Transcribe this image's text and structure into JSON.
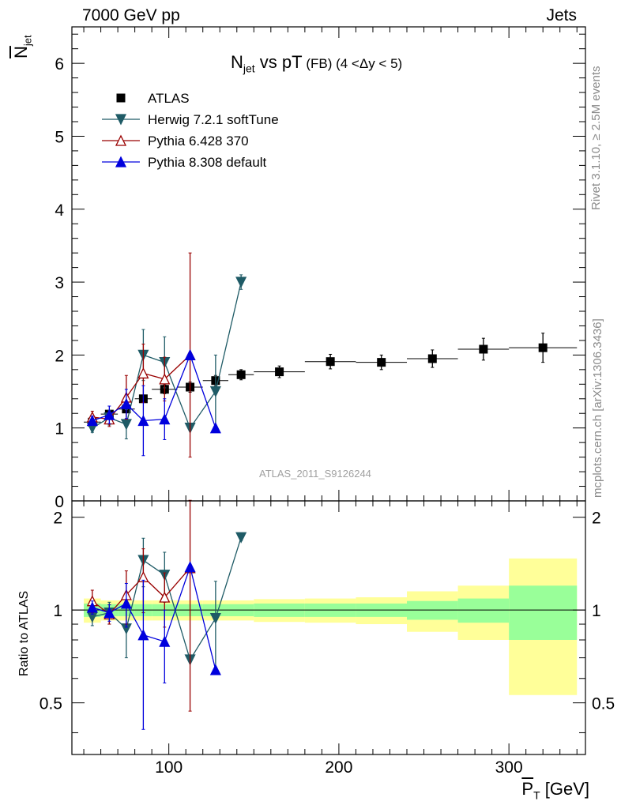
{
  "header": {
    "energy_label": "7000 GeV pp",
    "process_label": "Jets"
  },
  "side_labels": {
    "rivet": "Rivet 3.1.10, ≥ 2.5M events",
    "mcplots": "mcplots.cern.ch [arXiv:1306.3436]"
  },
  "colors": {
    "atlas": "#000000",
    "herwig": "#1f5b66",
    "pythia6": "#990000",
    "pythia8": "#0000dd",
    "band_inner": "#99ff99",
    "band_outer": "#ffff99"
  },
  "chart_data": [
    {
      "type": "scatter",
      "panel": "main",
      "title_parts": {
        "main": "N",
        "sub": "jet",
        "rest": " vs pT",
        "small": " (FB) (4 <Δy < 5)"
      },
      "ylabel_parts": {
        "main": "N",
        "sub": "jet"
      },
      "watermark": "ATLAS_2011_S9126244",
      "xlim": [
        43,
        345
      ],
      "ylim": [
        0,
        6.5
      ],
      "y_ticks": [
        0,
        1,
        2,
        3,
        4,
        5,
        6
      ],
      "legend_position": "top-left",
      "series": [
        {
          "name": "ATLAS",
          "marker": "square",
          "x": [
            55,
            65,
            75,
            85,
            97.5,
            112.5,
            127.5,
            142.5,
            165,
            195,
            225,
            255,
            285,
            320
          ],
          "xerr": [
            5,
            5,
            5,
            5,
            7.5,
            7.5,
            7.5,
            7.5,
            15,
            15,
            15,
            15,
            15,
            20
          ],
          "y": [
            1.08,
            1.19,
            1.26,
            1.4,
            1.53,
            1.56,
            1.65,
            1.73,
            1.77,
            1.91,
            1.9,
            1.95,
            2.08,
            2.1
          ],
          "yerr": [
            0.04,
            0.05,
            0.05,
            0.05,
            0.06,
            0.07,
            0.07,
            0.07,
            0.08,
            0.1,
            0.1,
            0.12,
            0.15,
            0.2
          ]
        },
        {
          "name": "Herwig 7.2.1 softTune",
          "marker": "triangle-down",
          "x": [
            55,
            65,
            75,
            85,
            97.5,
            112.5,
            127.5,
            142.5
          ],
          "y": [
            1.0,
            1.14,
            1.05,
            2.0,
            1.9,
            1.0,
            1.5,
            3.0
          ],
          "yerr": [
            0.06,
            0.1,
            0.2,
            0.35,
            0.35,
            0.0,
            0.5,
            0.1
          ]
        },
        {
          "name": "Pythia 6.428 370",
          "marker": "triangle-up-open",
          "x": [
            55,
            65,
            75,
            85,
            97.5,
            112.5
          ],
          "y": [
            1.15,
            1.12,
            1.42,
            1.75,
            1.67,
            2.0
          ],
          "yerr": [
            0.08,
            0.1,
            0.3,
            0.4,
            0.3,
            1.4
          ]
        },
        {
          "name": "Pythia 8.308 default",
          "marker": "triangle-up",
          "x": [
            55,
            65,
            75,
            85,
            97.5,
            112.5,
            127.5
          ],
          "y": [
            1.1,
            1.18,
            1.33,
            1.1,
            1.12,
            2.0,
            1.0
          ],
          "yerr": [
            0.06,
            0.12,
            0.2,
            0.48,
            0.28,
            0.0,
            0.0
          ]
        }
      ]
    },
    {
      "type": "line",
      "panel": "ratio",
      "ylabel": "Ratio to ATLAS",
      "xlabel_parts": {
        "main": "P",
        "sub": "T",
        "rest": " [GeV]"
      },
      "xlim": [
        43,
        345
      ],
      "ylim": [
        0.34,
        2.26
      ],
      "y_ticks": [
        0.5,
        1,
        2
      ],
      "x_ticks": [
        100,
        200,
        300
      ],
      "band_bins": {
        "low": [
          50,
          60,
          70,
          80,
          90,
          105,
          120,
          135,
          150,
          180,
          210,
          240,
          270,
          300
        ],
        "high": [
          60,
          70,
          80,
          90,
          105,
          120,
          135,
          150,
          180,
          210,
          240,
          270,
          300,
          340
        ],
        "inner": [
          0.05,
          0.045,
          0.045,
          0.045,
          0.045,
          0.045,
          0.045,
          0.045,
          0.05,
          0.05,
          0.05,
          0.07,
          0.09,
          0.2
        ],
        "outer": [
          0.09,
          0.075,
          0.075,
          0.075,
          0.075,
          0.075,
          0.075,
          0.075,
          0.085,
          0.09,
          0.1,
          0.15,
          0.2,
          0.47
        ]
      },
      "series": [
        {
          "name": "Herwig 7.2.1 softTune",
          "marker": "triangle-down",
          "x": [
            55,
            65,
            75,
            85,
            97.5,
            112.5,
            127.5,
            142.5
          ],
          "y": [
            0.95,
            0.98,
            0.87,
            1.45,
            1.3,
            0.69,
            0.94,
            1.72
          ],
          "yerr": [
            0.06,
            0.08,
            0.17,
            0.26,
            0.24,
            0.0,
            0.3,
            0.04
          ]
        },
        {
          "name": "Pythia 6.428 370",
          "marker": "triangle-up-open",
          "x": [
            55,
            65,
            75,
            85,
            97.5,
            112.5
          ],
          "y": [
            1.07,
            0.97,
            1.12,
            1.28,
            1.1,
            1.37
          ],
          "yerr": [
            0.09,
            0.07,
            0.22,
            0.3,
            0.22,
            0.9
          ]
        },
        {
          "name": "Pythia 8.308 default",
          "marker": "triangle-up",
          "x": [
            55,
            65,
            75,
            85,
            97.5,
            112.5,
            127.5
          ],
          "y": [
            1.02,
            0.98,
            1.05,
            0.83,
            0.79,
            1.38,
            0.64
          ],
          "yerr": [
            0.05,
            0.06,
            0.17,
            0.42,
            0.21,
            0.0,
            0.0
          ]
        }
      ]
    }
  ]
}
